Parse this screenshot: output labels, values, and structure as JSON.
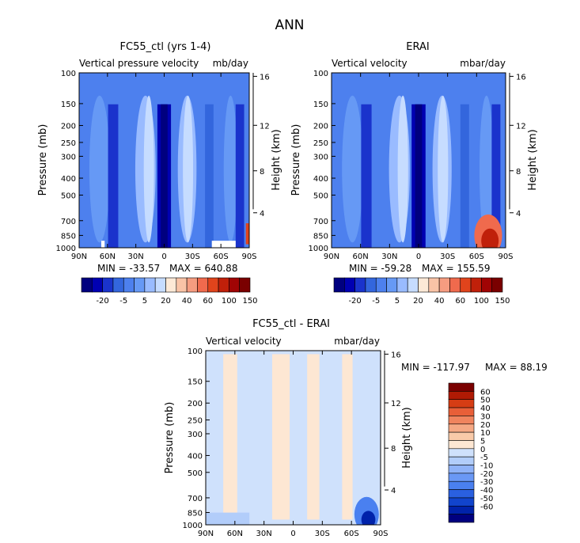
{
  "figure": {
    "title": "ANN"
  },
  "colors": {
    "standard": [
      "#00007f",
      "#0000b2",
      "#1a33cc",
      "#3366dd",
      "#4d80ee",
      "#6699f5",
      "#99bbff",
      "#c6dcff",
      "#fde9d6",
      "#f9c3a6",
      "#f59c80",
      "#f06a4d",
      "#e0441c",
      "#c0200a",
      "#a00404",
      "#7a0000"
    ],
    "diff": [
      "#00007f",
      "#0022aa",
      "#1144cc",
      "#2a60e0",
      "#4a80f0",
      "#6a98f5",
      "#8fb2f8",
      "#b2cdfa",
      "#cfe1fc",
      "#fde7d3",
      "#f9caa9",
      "#f5a884",
      "#f0845e",
      "#e85f38",
      "#d63d14",
      "#b01a04",
      "#7a0000"
    ]
  },
  "chart_data": [
    {
      "type": "heatmap",
      "title": "FC55_ctl (yrs 1-4)",
      "subtitle_left": "Vertical pressure velocity",
      "subtitle_right": "mb/day",
      "xlabel": "",
      "ylabel": "Pressure (mb)",
      "ylabel_right": "Height (km)",
      "x_ticks": [
        "90N",
        "60N",
        "30N",
        "0",
        "30S",
        "60S",
        "90S"
      ],
      "x_range": [
        90,
        -90
      ],
      "y_ticks": [
        100,
        150,
        200,
        250,
        300,
        400,
        500,
        700,
        850,
        1000
      ],
      "y_range": [
        100,
        1000
      ],
      "y_scale": "log",
      "y_right_ticks": [
        16,
        12,
        8,
        4
      ],
      "stats": {
        "min_label": "MIN = -33.57",
        "max_label": "MAX = 640.88"
      },
      "colorbar_labels": [
        "-20",
        "-5",
        "5",
        "20",
        "40",
        "60",
        "100",
        "150"
      ],
      "dominant": "blue"
    },
    {
      "type": "heatmap",
      "title": "ERAI",
      "subtitle_left": "Vertical velocity",
      "subtitle_right": "mbar/day",
      "xlabel": "",
      "ylabel": "Pressure (mb)",
      "ylabel_right": "Height (km)",
      "x_ticks": [
        "90N",
        "60N",
        "30N",
        "0",
        "30S",
        "60S",
        "90S"
      ],
      "x_range": [
        90,
        -90
      ],
      "y_ticks": [
        100,
        150,
        200,
        250,
        300,
        400,
        500,
        700,
        850,
        1000
      ],
      "y_range": [
        100,
        1000
      ],
      "y_scale": "log",
      "y_right_ticks": [
        16,
        12,
        8,
        4
      ],
      "stats": {
        "min_label": "MIN = -59.28",
        "max_label": "MAX = 155.59"
      },
      "colorbar_labels": [
        "-20",
        "-5",
        "5",
        "20",
        "40",
        "60",
        "100",
        "150"
      ],
      "dominant": "blue"
    },
    {
      "type": "heatmap",
      "title": "FC55_ctl - ERAI",
      "subtitle_left": "Vertical velocity",
      "subtitle_right": "mbar/day",
      "xlabel": "",
      "ylabel": "Pressure (mb)",
      "ylabel_right": "Height (km)",
      "x_ticks": [
        "90N",
        "60N",
        "30N",
        "0",
        "30S",
        "60S",
        "90S"
      ],
      "x_range": [
        90,
        -90
      ],
      "y_ticks": [
        100,
        150,
        200,
        250,
        300,
        400,
        500,
        700,
        850,
        1000
      ],
      "y_range": [
        100,
        1000
      ],
      "y_scale": "log",
      "y_right_ticks": [
        16,
        12,
        8,
        4
      ],
      "stats": {
        "min_label": "MIN = -117.97",
        "max_label": "MAX =  88.19"
      },
      "colorbar_labels": [
        "60",
        "50",
        "40",
        "30",
        "20",
        "10",
        "5",
        "0",
        "-5",
        "-10",
        "-20",
        "-30",
        "-40",
        "-50",
        "-60"
      ],
      "dominant": "light"
    }
  ]
}
